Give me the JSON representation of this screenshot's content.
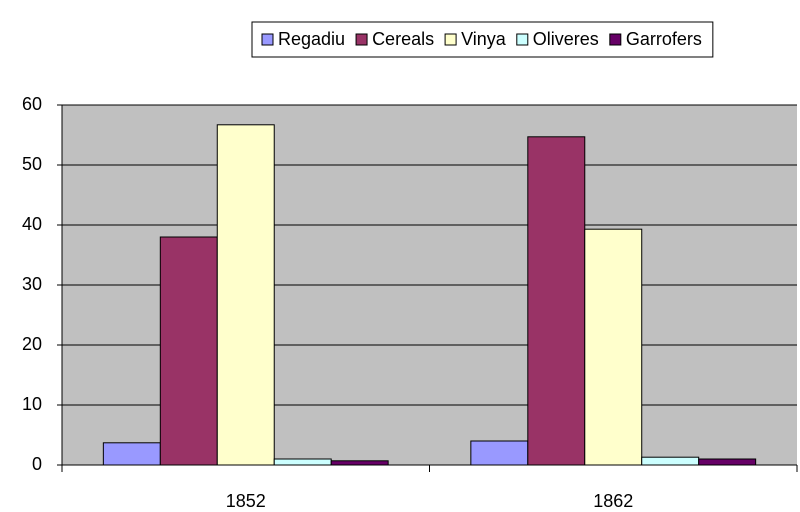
{
  "chart_data": {
    "type": "bar",
    "categories": [
      "1852",
      "1862"
    ],
    "series": [
      {
        "name": "Regadiu",
        "color": "#9999FF",
        "values": [
          3.7,
          4.0
        ]
      },
      {
        "name": "Cereals",
        "color": "#993366",
        "values": [
          38.0,
          54.7
        ]
      },
      {
        "name": "Vinya",
        "color": "#FFFFCC",
        "values": [
          56.7,
          39.3
        ]
      },
      {
        "name": "Oliveres",
        "color": "#CCFFFF",
        "values": [
          1.0,
          1.3
        ]
      },
      {
        "name": "Garrofers",
        "color": "#660066",
        "values": [
          0.7,
          1.0
        ]
      }
    ],
    "ylim": [
      0,
      60
    ],
    "yticks": [
      0,
      10,
      20,
      30,
      40,
      50,
      60
    ],
    "grid": true,
    "legend": "top"
  }
}
